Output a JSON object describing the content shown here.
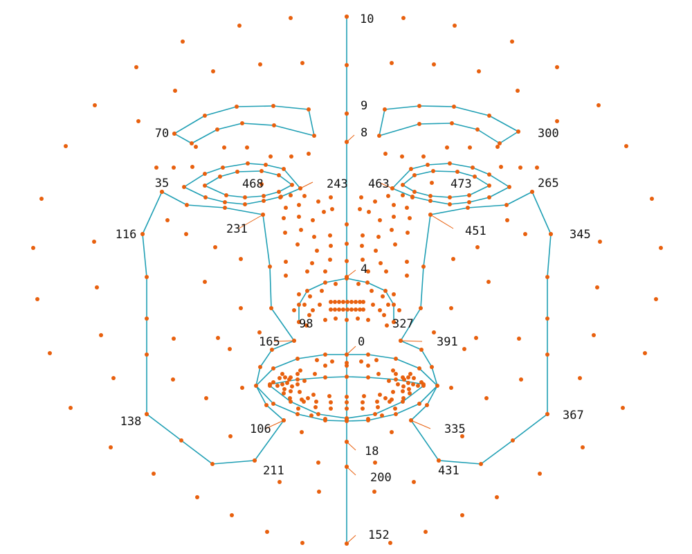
{
  "colors": {
    "contour": "#1f9fb4",
    "landmark": "#e8600e",
    "leader": "#e8600e",
    "label": "#111111",
    "background": "#ffffff"
  },
  "labels": [
    "10",
    "9",
    "8",
    "70",
    "300",
    "35",
    "468",
    "243",
    "463",
    "473",
    "265",
    "116",
    "231",
    "451",
    "345",
    "4",
    "98",
    "327",
    "165",
    "0",
    "391",
    "138",
    "106",
    "335",
    "367",
    "18",
    "211",
    "431",
    "200",
    "152"
  ]
}
